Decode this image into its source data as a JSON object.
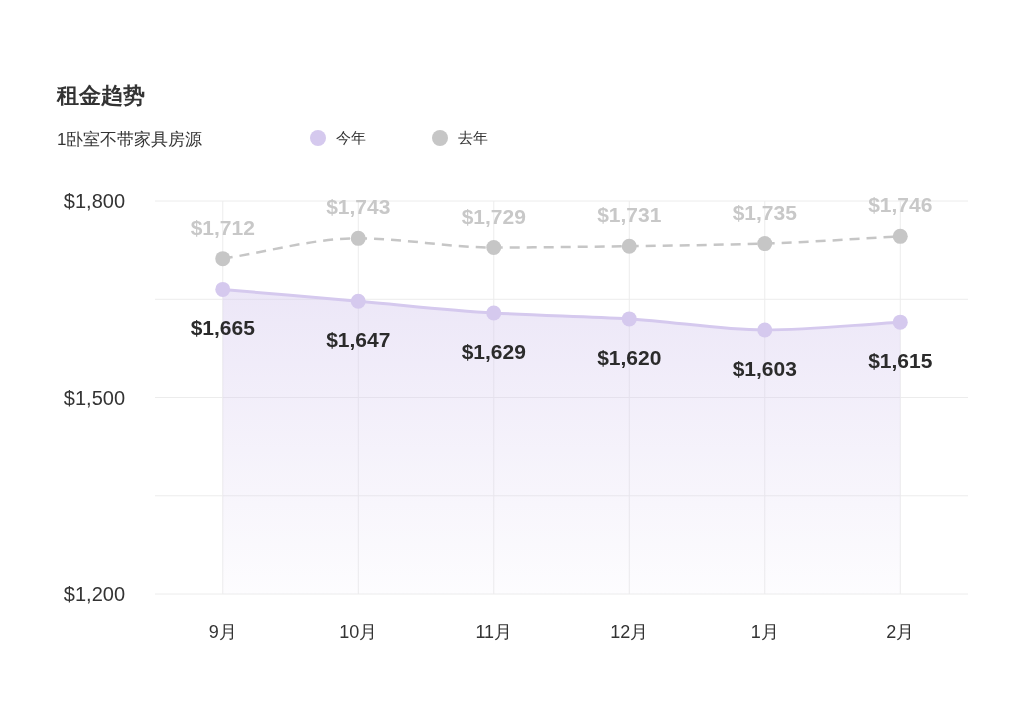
{
  "chart_data": {
    "type": "line",
    "title": "租金趋势",
    "subtitle": "1卧室不带家具房源",
    "categories": [
      "9月",
      "10月",
      "11月",
      "12月",
      "1月",
      "2月"
    ],
    "series": [
      {
        "name": "今年",
        "type": "area",
        "color": "#d5c9ee",
        "values": [
          1665,
          1647,
          1629,
          1620,
          1603,
          1615
        ],
        "value_labels": [
          "$1,665",
          "$1,647",
          "$1,629",
          "$1,620",
          "$1,603",
          "$1,615"
        ]
      },
      {
        "name": "去年",
        "type": "line",
        "color": "#c6c6c6",
        "line_style": "dashed",
        "values": [
          1712,
          1743,
          1729,
          1731,
          1735,
          1746
        ],
        "value_labels": [
          "$1,712",
          "$1,743",
          "$1,729",
          "$1,731",
          "$1,735",
          "$1,746"
        ]
      }
    ],
    "ylim": [
      1200,
      1800
    ],
    "yticks": [
      {
        "value": 1200,
        "label": "$1,200"
      },
      {
        "value": 1350,
        "label": null
      },
      {
        "value": 1500,
        "label": "$1,500"
      },
      {
        "value": 1650,
        "label": null
      },
      {
        "value": 1800,
        "label": "$1,800"
      }
    ],
    "grid": true,
    "legend": "top",
    "marker": "circle"
  }
}
